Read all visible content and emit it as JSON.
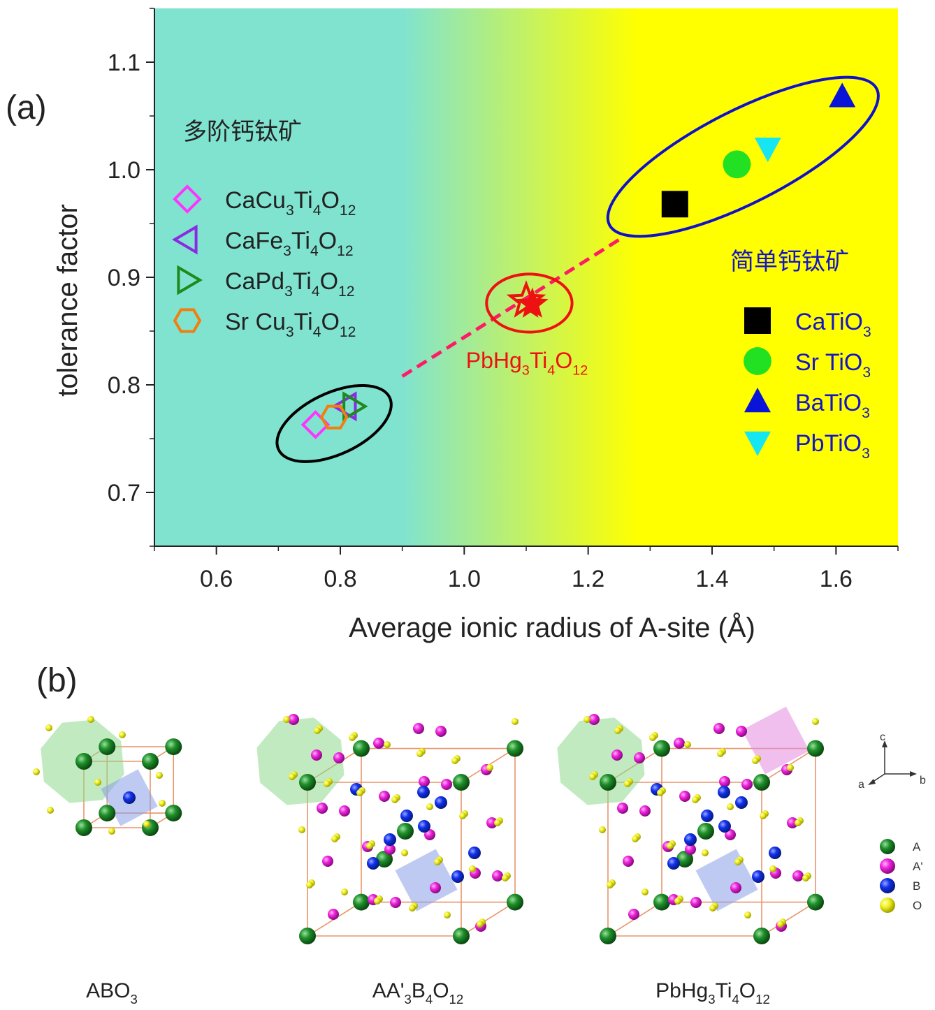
{
  "panel_a_label": "(a)",
  "panel_b_label": "(b)",
  "chart_data": {
    "type": "scatter",
    "xlabel": "Average ionic radius of A-site (Å)",
    "ylabel": "tolerance factor",
    "xlim": [
      0.5,
      1.7
    ],
    "ylim": [
      0.65,
      1.15
    ],
    "xticks": [
      "0.6",
      "0.8",
      "1.0",
      "1.2",
      "1.4",
      "1.6"
    ],
    "yticks": [
      "0.7",
      "0.8",
      "0.9",
      "1.0",
      "1.1"
    ],
    "background": {
      "left_color": "#80e3d0",
      "right_color": "#ffff00",
      "gradient_from_x": 0.9,
      "gradient_to_x": 1.28
    },
    "groups": [
      {
        "title": "多阶钙钛矿",
        "legend_position": "top-left",
        "series": [
          {
            "name_parts": [
              [
                "CaCu",
                false
              ],
              [
                "3",
                true
              ],
              [
                "Ti",
                false
              ],
              [
                "4",
                true
              ],
              [
                "O",
                false
              ],
              [
                "12",
                true
              ]
            ],
            "marker": "diamond-open",
            "color": "#ff33ff",
            "x": 0.76,
            "y": 0.763
          },
          {
            "name_parts": [
              [
                "CaFe",
                false
              ],
              [
                "3",
                true
              ],
              [
                "Ti",
                false
              ],
              [
                "4",
                true
              ],
              [
                "O",
                false
              ],
              [
                "12",
                true
              ]
            ],
            "marker": "triangle-left-open",
            "color": "#8a2be2",
            "x": 0.81,
            "y": 0.78
          },
          {
            "name_parts": [
              [
                "CaPd",
                false
              ],
              [
                "3",
                true
              ],
              [
                "Ti",
                false
              ],
              [
                "4",
                true
              ],
              [
                "O",
                false
              ],
              [
                "12",
                true
              ]
            ],
            "marker": "triangle-right-open",
            "color": "#1e8a1e",
            "x": 0.82,
            "y": 0.78
          },
          {
            "name_parts": [
              [
                "Sr Cu",
                false
              ],
              [
                "3",
                true
              ],
              [
                "Ti",
                false
              ],
              [
                "4",
                true
              ],
              [
                "O",
                false
              ],
              [
                "12",
                true
              ]
            ],
            "marker": "hexagon-open",
            "color": "#f07f10",
            "x": 0.79,
            "y": 0.77
          }
        ]
      },
      {
        "title": "简单钙钛矿",
        "legend_position": "bottom-right",
        "series": [
          {
            "name_parts": [
              [
                "CaTiO",
                false
              ],
              [
                "3",
                true
              ]
            ],
            "marker": "square",
            "color": "#000000",
            "x": 1.34,
            "y": 0.968
          },
          {
            "name_parts": [
              [
                "Sr TiO",
                false
              ],
              [
                "3",
                true
              ]
            ],
            "marker": "circle",
            "color": "#22e022",
            "x": 1.44,
            "y": 1.005
          },
          {
            "name_parts": [
              [
                "BaTiO",
                false
              ],
              [
                "3",
                true
              ]
            ],
            "marker": "triangle-up",
            "color": "#0a14d8",
            "x": 1.61,
            "y": 1.068
          },
          {
            "name_parts": [
              [
                "PbTiO",
                false
              ],
              [
                "3",
                true
              ]
            ],
            "marker": "triangle-down",
            "color": "#16e6f2",
            "x": 1.49,
            "y": 1.02
          }
        ]
      }
    ],
    "highlight": {
      "name_parts": [
        [
          "PbHg",
          false
        ],
        [
          "3",
          true
        ],
        [
          "Ti",
          false
        ],
        [
          "4",
          true
        ],
        [
          "O",
          false
        ],
        [
          "12",
          true
        ]
      ],
      "marker": "star",
      "color": "#ee1111",
      "points": [
        {
          "x": 1.1,
          "y": 0.878,
          "filled": false
        },
        {
          "x": 1.11,
          "y": 0.875,
          "filled": true
        }
      ]
    },
    "ellipses": [
      {
        "cx": 0.79,
        "cy": 0.764,
        "rx": 0.09,
        "ry": 0.022,
        "color": "#000000"
      },
      {
        "cx": 1.105,
        "cy": 0.876,
        "rx": 0.069,
        "ry": 0.027,
        "color": "#ee1111"
      },
      {
        "cx": 1.45,
        "cy": 1.012,
        "rx": 0.22,
        "ry": 0.033,
        "color": "#1010cc"
      }
    ],
    "trend_line": {
      "from": [
        0.9,
        0.808
      ],
      "to": [
        1.25,
        0.935
      ],
      "color": "#ff1a66",
      "style": "dashed"
    }
  },
  "crystal_structures": [
    {
      "label_parts": [
        [
          "ABO",
          false
        ],
        [
          "3",
          true
        ]
      ]
    },
    {
      "label_parts": [
        [
          "AA'",
          false
        ],
        [
          "3",
          true
        ],
        [
          "B",
          false
        ],
        [
          "4",
          true
        ],
        [
          "O",
          false
        ],
        [
          "12",
          true
        ]
      ]
    },
    {
      "label_parts": [
        [
          "PbHg",
          false
        ],
        [
          "3",
          true
        ],
        [
          "Ti",
          false
        ],
        [
          "4",
          true
        ],
        [
          "O",
          false
        ],
        [
          "12",
          true
        ]
      ]
    }
  ],
  "axes_legend": {
    "c": "c",
    "a": "a",
    "b": "b"
  },
  "atom_legend": [
    {
      "label": "A",
      "color": "#1f8f2a"
    },
    {
      "label": "A'",
      "color": "#ee22dd"
    },
    {
      "label": "B",
      "color": "#1030ee"
    },
    {
      "label": "O",
      "color": "#f0f020"
    }
  ]
}
